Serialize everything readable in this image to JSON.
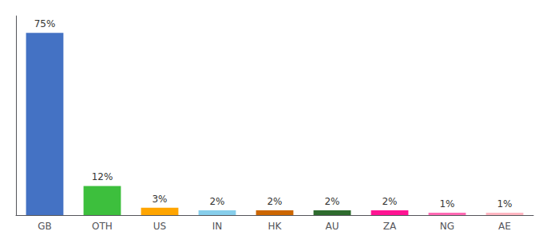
{
  "chart_data": {
    "type": "bar",
    "categories": [
      "GB",
      "OTH",
      "US",
      "IN",
      "HK",
      "AU",
      "ZA",
      "NG",
      "AE"
    ],
    "values": [
      75,
      12,
      3,
      2,
      2,
      2,
      2,
      1,
      1
    ],
    "value_labels": [
      "75%",
      "12%",
      "3%",
      "2%",
      "2%",
      "2%",
      "2%",
      "1%",
      "1%"
    ],
    "colors": [
      "#4472C4",
      "#3DBF3D",
      "#FFA500",
      "#87CEEB",
      "#CC6600",
      "#2E6B2E",
      "#FF1493",
      "#FF69B4",
      "#FFB6C1"
    ],
    "ylim": [
      0,
      82
    ],
    "grid": false,
    "tick_labels": "x",
    "data_labels": true
  }
}
